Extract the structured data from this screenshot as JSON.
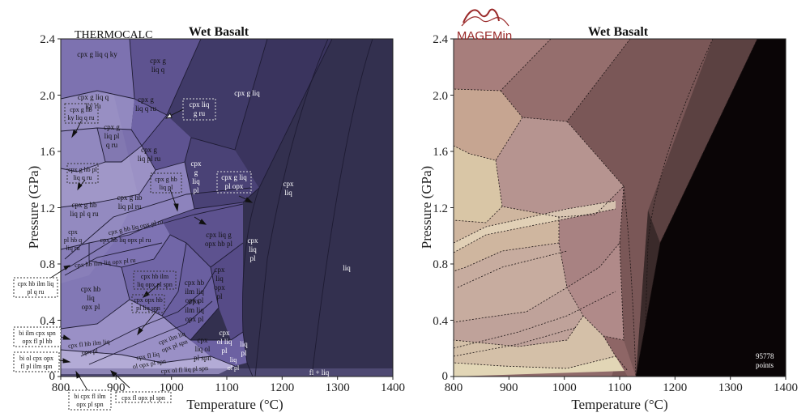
{
  "chart_data": [
    {
      "type": "phase-diagram",
      "title": "Wet Basalt",
      "source_label": "THERMOCALC",
      "xlabel": "Temperature (°C)",
      "ylabel": "Pressure (GPa)",
      "xlim": [
        800,
        1400
      ],
      "ylim": [
        0,
        2.4
      ],
      "xticks": [
        "800",
        "900",
        "1000",
        "1100",
        "1200",
        "1300",
        "1400"
      ],
      "yticks": [
        "0",
        "0.4",
        "0.8",
        "1.2",
        "1.6",
        "2.0",
        "2.4"
      ],
      "field_labels": [
        {
          "lines": [
            "cpx g liq q ky"
          ]
        },
        {
          "lines": [
            "cpx g",
            "liq q"
          ]
        },
        {
          "lines": [
            "cpx g liq"
          ]
        },
        {
          "lines": [
            "cpx g liq q",
            "ky ru"
          ]
        },
        {
          "lines": [
            "cpx g",
            "liq q ru"
          ]
        },
        {
          "lines": [
            "cpx liq",
            "g ru"
          ]
        },
        {
          "lines": [
            "cpx g hb",
            "ky liq q ru"
          ]
        },
        {
          "lines": [
            "cpx g",
            "liq pl",
            "q ru"
          ]
        },
        {
          "lines": [
            "cpx g",
            "liq pl ru"
          ]
        },
        {
          "lines": [
            "cpx",
            "g",
            "liq",
            "pl"
          ]
        },
        {
          "lines": [
            "cpx",
            "liq"
          ]
        },
        {
          "lines": [
            "cpx g hb pl",
            "liq q ru"
          ]
        },
        {
          "lines": [
            "cpx g hb",
            "liq pl"
          ]
        },
        {
          "lines": [
            "cpx g liq",
            "pl opx"
          ]
        },
        {
          "lines": [
            "cpx g hb",
            "liq pl q ru"
          ]
        },
        {
          "lines": [
            "cpx g hb",
            "liq pl ru"
          ]
        },
        {
          "lines": [
            "cpx g hb liq opx pl ru"
          ]
        },
        {
          "lines": [
            "cpx hb liq opx pl ru"
          ]
        },
        {
          "lines": [
            "cpx",
            "pl hb q",
            "liq ru"
          ]
        },
        {
          "lines": [
            "cpx hb ilm liq opx pl ru"
          ]
        },
        {
          "lines": [
            "cpx hb",
            "liq",
            "opx pl"
          ]
        },
        {
          "lines": [
            "cpx liq g",
            "opx hb pl"
          ]
        },
        {
          "lines": [
            "cpx",
            "liq",
            "pl"
          ]
        },
        {
          "lines": [
            "cpx",
            "liq",
            "opx",
            "pl"
          ]
        },
        {
          "lines": [
            "liq"
          ]
        },
        {
          "lines": [
            "cpx hb ilm",
            "liq opx pl spn"
          ]
        },
        {
          "lines": [
            "cpx hb",
            "ilm liq",
            "opx pl"
          ]
        },
        {
          "lines": [
            "cpx opx hb",
            "pl liq spn"
          ]
        },
        {
          "lines": [
            "cpx",
            "ilm liq",
            "opx pl"
          ]
        },
        {
          "lines": [
            "cpx hb ilm liq",
            "pl q ru"
          ]
        },
        {
          "lines": [
            "bi ilm cpx spn",
            "opx fl pl hb"
          ]
        },
        {
          "lines": [
            "cpx fl hb ilm liq",
            "opx pl"
          ]
        },
        {
          "lines": [
            "bi ol cpx opx",
            "fl pl ilm spn"
          ]
        },
        {
          "lines": [
            "cpx fl liq",
            "ol opx pl spn"
          ]
        },
        {
          "lines": [
            "cpx ilm liq",
            "opx pl spn"
          ]
        },
        {
          "lines": [
            "cpx",
            "liq ol",
            "pl spn"
          ]
        },
        {
          "lines": [
            "cpx",
            "ol liq",
            "pl"
          ]
        },
        {
          "lines": [
            "liq",
            "pl"
          ]
        },
        {
          "lines": [
            "fl + liq"
          ]
        },
        {
          "lines": [
            "bi cpx fl ilm",
            "opx pl spn"
          ]
        },
        {
          "lines": [
            "cpx fl opx pl spn"
          ]
        },
        {
          "lines": [
            "cpx ol fl liq pl spn"
          ]
        },
        {
          "lines": [
            "liq",
            "ol pl"
          ]
        }
      ]
    },
    {
      "type": "phase-diagram",
      "title": "Wet Basalt",
      "source_label": "MAGEMin",
      "xlabel": "Temperature (°C)",
      "ylabel": "Pressure (GPa)",
      "xlim": [
        800,
        1400
      ],
      "ylim": [
        0,
        2.4
      ],
      "xticks": [
        "800",
        "900",
        "1000",
        "1100",
        "1200",
        "1300",
        "1400"
      ],
      "yticks": [
        "0",
        "0.4",
        "0.8",
        "1.2",
        "1.6",
        "2.0",
        "2.4"
      ],
      "annotation": [
        "95778",
        "points"
      ]
    }
  ],
  "colors": {
    "tc_dark": "#2e2b48",
    "tc_mid": "#5a4f8e",
    "tc_light": "#9b90c4",
    "mm_dark": "#0a0506",
    "mm_mid": "#8c6565",
    "mm_light": "#ddcfaf",
    "logo_red": "#9a2a2a"
  }
}
